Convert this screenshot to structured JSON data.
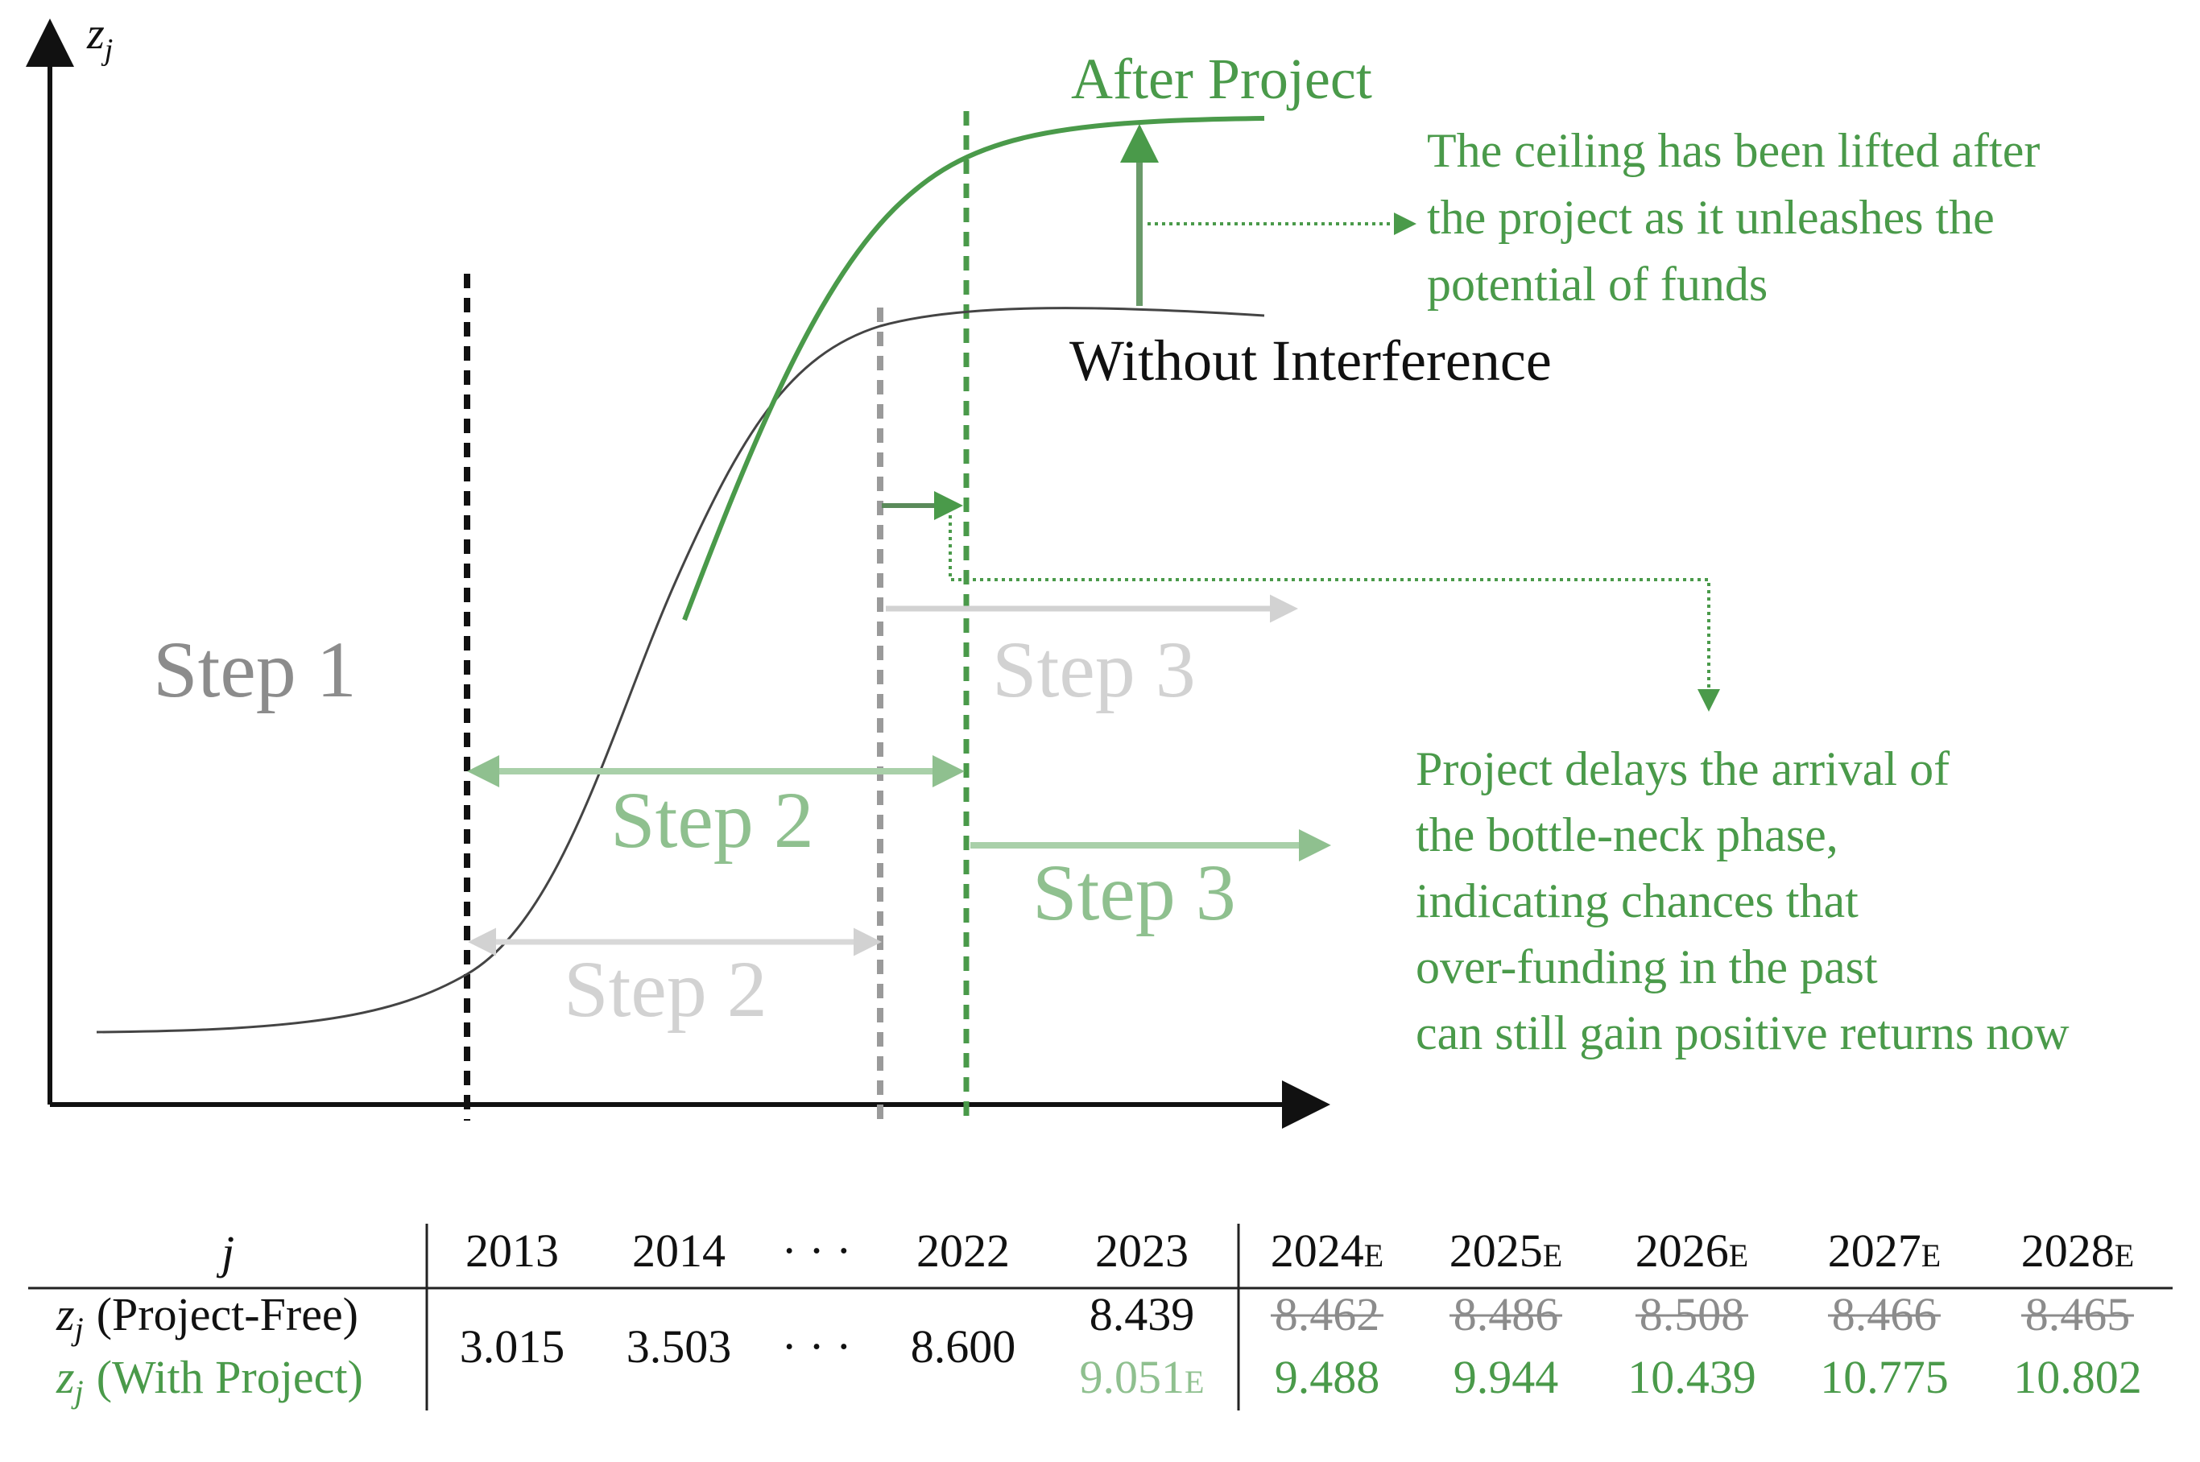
{
  "diagram": {
    "y_axis_label": "z",
    "y_axis_label_sub": "j",
    "after_project_label": "After Project",
    "without_interference_label": "Without Interference",
    "step1_label": "Step 1",
    "step2_label": "Step 2",
    "step3_label": "Step 3",
    "ceiling_note": [
      "The ceiling has been lifted after",
      "the project as it unleashes the",
      "potential of funds"
    ],
    "delay_note": [
      "Project delays the arrival of",
      "the bottle-neck phase,",
      "indicating chances that",
      "over-funding in the past",
      "can still gain positive returns now"
    ],
    "colors": {
      "green": "#4a9a4a",
      "green_light": "#8fc08f",
      "gray": "#8c8c8c",
      "gray_light": "#d2d2d2",
      "black": "#111111"
    }
  },
  "table": {
    "header_j": "j",
    "years": [
      "2013",
      "2014",
      "· · ·",
      "2022",
      "2023",
      "2024",
      "2025",
      "2026",
      "2027",
      "2028"
    ],
    "estimate_suffix": "E",
    "row_free_label": "(Project-Free)",
    "row_with_label": "(With Project)",
    "row_var": "z",
    "row_var_sub": "j",
    "shared_values": [
      "3.015",
      "3.503",
      "· · ·",
      "8.600"
    ],
    "free_2023": "8.439",
    "with_2023": "9.051",
    "free_future": [
      "8.462",
      "8.486",
      "8.508",
      "8.466",
      "8.465"
    ],
    "with_future": [
      "9.488",
      "9.944",
      "10.439",
      "10.775",
      "10.802"
    ]
  }
}
